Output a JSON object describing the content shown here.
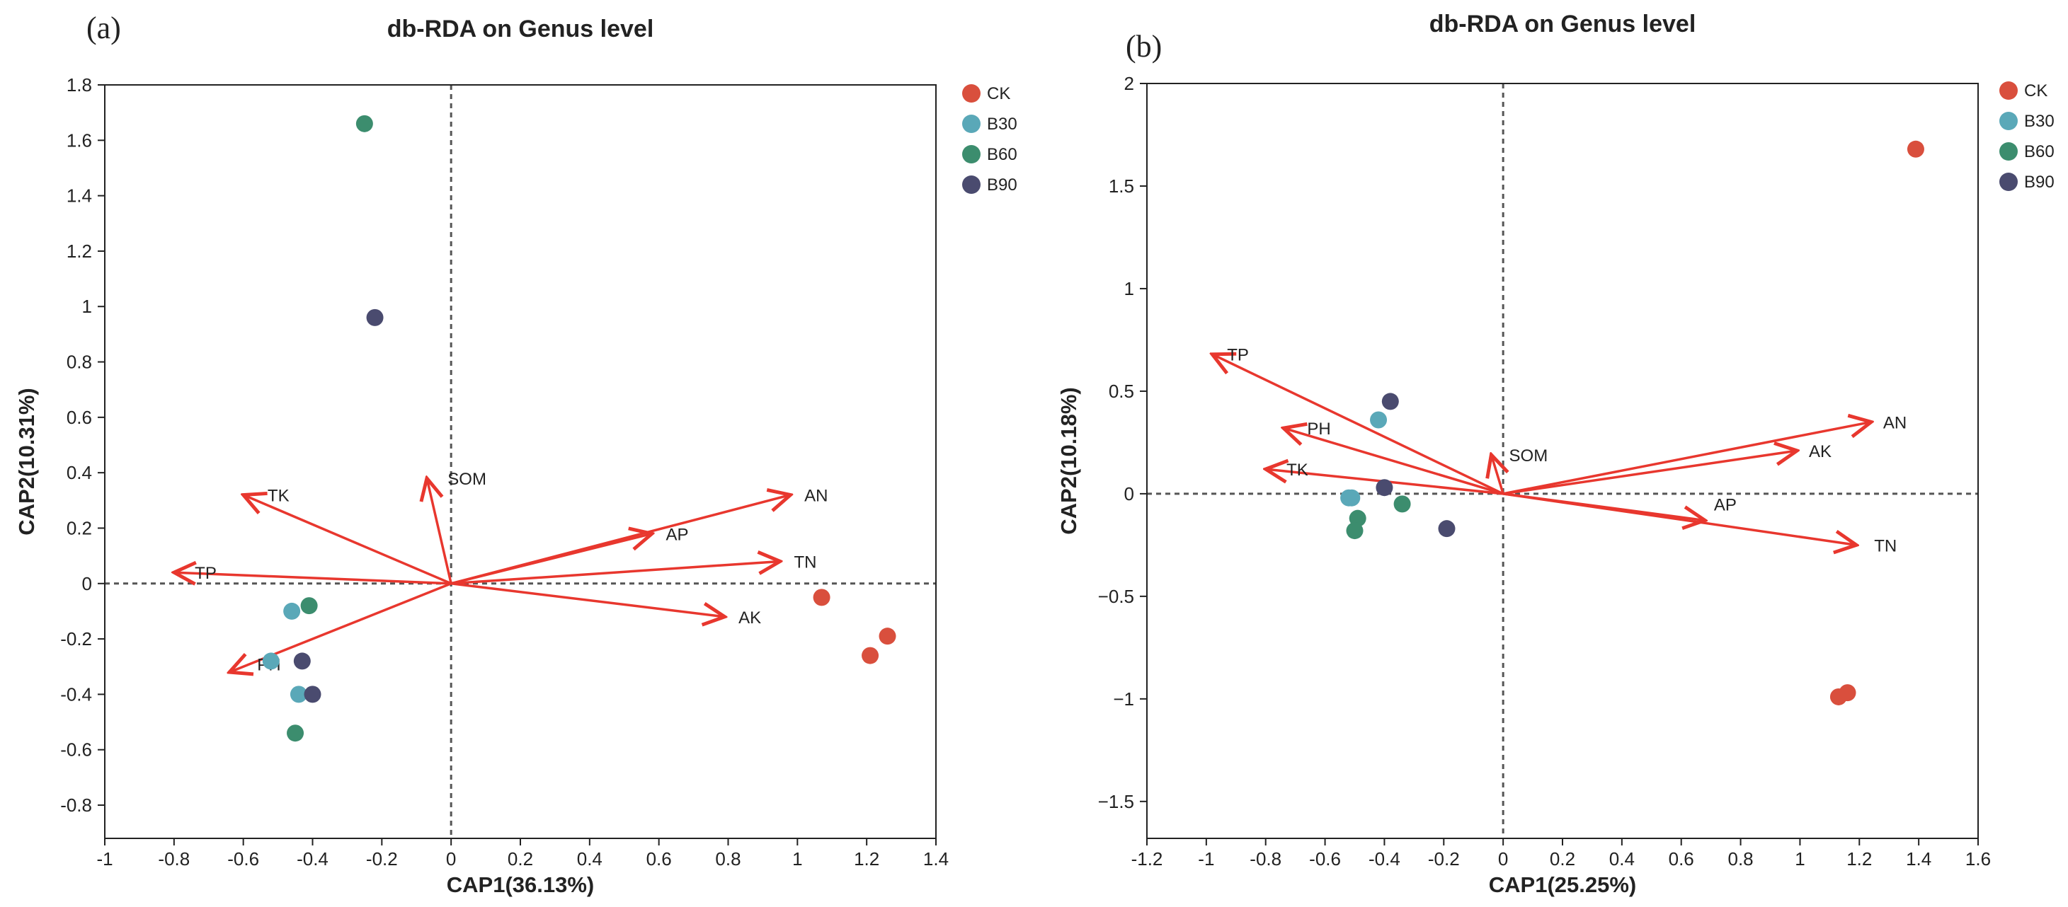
{
  "chart_data": [
    {
      "panel_label": "(a)",
      "type": "scatter",
      "title": "db-RDA on Genus level",
      "xlabel": "CAP1(36.13%)",
      "ylabel": "CAP2(10.31%)",
      "xlim": [
        -1,
        1.4
      ],
      "ylim": [
        -0.92,
        1.8
      ],
      "xticks": [
        -1,
        -0.8,
        -0.6,
        -0.4,
        -0.2,
        0,
        0.2,
        0.4,
        0.6,
        0.8,
        1,
        1.2,
        1.4
      ],
      "xtick_labels": [
        "-1",
        "-0.8",
        "-0.6",
        "-0.4",
        "-0.2",
        "0",
        "0.2",
        "0.4",
        "0.6",
        "0.8",
        "1",
        "1.2",
        "1.4"
      ],
      "yticks": [
        1.8,
        1.6,
        1.4,
        1.2,
        1,
        0.8,
        0.6,
        0.4,
        0.2,
        0,
        -0.2,
        -0.4,
        -0.6,
        -0.8
      ],
      "ytick_labels": [
        "1.8",
        "1.6",
        "1.4",
        "1.2",
        "1",
        "0.8",
        "0.6",
        "0.4",
        "0.2",
        "0",
        "-0.2",
        "-0.4",
        "-0.6",
        "-0.8"
      ],
      "legend_position": "right",
      "arrows": [
        {
          "label": "TK",
          "x": -0.6,
          "y": 0.32,
          "label_dx": 0.07,
          "label_dy": 0.0
        },
        {
          "label": "SOM",
          "x": -0.07,
          "y": 0.38,
          "label_dx": 0.06,
          "label_dy": 0.0
        },
        {
          "label": "TP",
          "x": -0.8,
          "y": 0.04,
          "label_dx": 0.06,
          "label_dy": 0.0
        },
        {
          "label": "AN",
          "x": 0.98,
          "y": 0.32,
          "label_dx": 0.04,
          "label_dy": 0.0
        },
        {
          "label": "AP",
          "x": 0.58,
          "y": 0.18,
          "label_dx": 0.04,
          "label_dy": 0.0
        },
        {
          "label": "TN",
          "x": 0.95,
          "y": 0.08,
          "label_dx": 0.04,
          "label_dy": 0.0
        },
        {
          "label": "AK",
          "x": 0.79,
          "y": -0.12,
          "label_dx": 0.04,
          "label_dy": 0.0
        },
        {
          "label": "PH",
          "x": -0.64,
          "y": -0.32,
          "label_dx": 0.08,
          "label_dy": 0.03
        }
      ],
      "series": [
        {
          "name": "CK",
          "color": "#D94F3D",
          "points": [
            [
              1.07,
              -0.05
            ],
            [
              1.21,
              -0.26
            ],
            [
              1.26,
              -0.19
            ]
          ]
        },
        {
          "name": "B30",
          "color": "#5AA8B8",
          "points": [
            [
              -0.46,
              -0.1
            ],
            [
              -0.52,
              -0.28
            ],
            [
              -0.44,
              -0.4
            ]
          ]
        },
        {
          "name": "B60",
          "color": "#3C8D6E",
          "points": [
            [
              -0.25,
              1.66
            ],
            [
              -0.41,
              -0.08
            ],
            [
              -0.45,
              -0.54
            ]
          ]
        },
        {
          "name": "B90",
          "color": "#4A4B6F",
          "points": [
            [
              -0.22,
              0.96
            ],
            [
              -0.43,
              -0.28
            ],
            [
              -0.4,
              -0.4
            ]
          ]
        }
      ]
    },
    {
      "panel_label": "(b)",
      "type": "scatter",
      "title": "db-RDA on Genus level",
      "xlabel": "CAP1(25.25%)",
      "ylabel": "CAP2(10.18%)",
      "xlim": [
        -1.2,
        1.6
      ],
      "ylim": [
        -1.68,
        2.0
      ],
      "xticks": [
        -1.2,
        -1,
        -0.8,
        -0.6,
        -0.4,
        -0.2,
        0,
        0.2,
        0.4,
        0.6,
        0.8,
        1,
        1.2,
        1.4,
        1.6
      ],
      "xtick_labels": [
        "-1.2",
        "-1",
        "-0.8",
        "-0.6",
        "-0.4",
        "-0.2",
        "0",
        "0.2",
        "0.4",
        "0.6",
        "0.8",
        "1",
        "1.2",
        "1.4",
        "1.6"
      ],
      "yticks": [
        2,
        1.5,
        1,
        0.5,
        0,
        -0.5,
        -1,
        -1.5
      ],
      "ytick_labels": [
        "2",
        "1.5",
        "1",
        "0.5",
        "0",
        "−0.5",
        "−1",
        "−1.5"
      ],
      "legend_position": "right",
      "arrows": [
        {
          "label": "TP",
          "x": -0.98,
          "y": 0.68,
          "label_dx": 0.05,
          "label_dy": 0.0
        },
        {
          "label": "PH",
          "x": -0.74,
          "y": 0.32,
          "label_dx": 0.08,
          "label_dy": 0.0
        },
        {
          "label": "TK",
          "x": -0.8,
          "y": 0.12,
          "label_dx": 0.07,
          "label_dy": 0.0
        },
        {
          "label": "SOM",
          "x": -0.04,
          "y": 0.19,
          "label_dx": 0.06,
          "label_dy": 0.0
        },
        {
          "label": "AN",
          "x": 1.24,
          "y": 0.35,
          "label_dx": 0.04,
          "label_dy": 0.0
        },
        {
          "label": "AK",
          "x": 0.99,
          "y": 0.21,
          "label_dx": 0.04,
          "label_dy": 0.0
        },
        {
          "label": "AP",
          "x": 0.68,
          "y": -0.13,
          "label_dx": 0.03,
          "label_dy": 0.08
        },
        {
          "label": "TN",
          "x": 1.19,
          "y": -0.25,
          "label_dx": 0.06,
          "label_dy": 0.0
        }
      ],
      "series": [
        {
          "name": "CK",
          "color": "#D94F3D",
          "points": [
            [
              1.39,
              1.68
            ],
            [
              1.13,
              -0.99
            ],
            [
              1.16,
              -0.97
            ]
          ]
        },
        {
          "name": "B30",
          "color": "#5AA8B8",
          "points": [
            [
              -0.42,
              0.36
            ],
            [
              -0.52,
              -0.02
            ],
            [
              -0.51,
              -0.02
            ]
          ]
        },
        {
          "name": "B60",
          "color": "#3C8D6E",
          "points": [
            [
              -0.34,
              -0.05
            ],
            [
              -0.49,
              -0.12
            ],
            [
              -0.5,
              -0.18
            ]
          ]
        },
        {
          "name": "B90",
          "color": "#4A4B6F",
          "points": [
            [
              -0.38,
              0.45
            ],
            [
              -0.4,
              0.03
            ],
            [
              -0.19,
              -0.17
            ]
          ]
        }
      ]
    }
  ]
}
